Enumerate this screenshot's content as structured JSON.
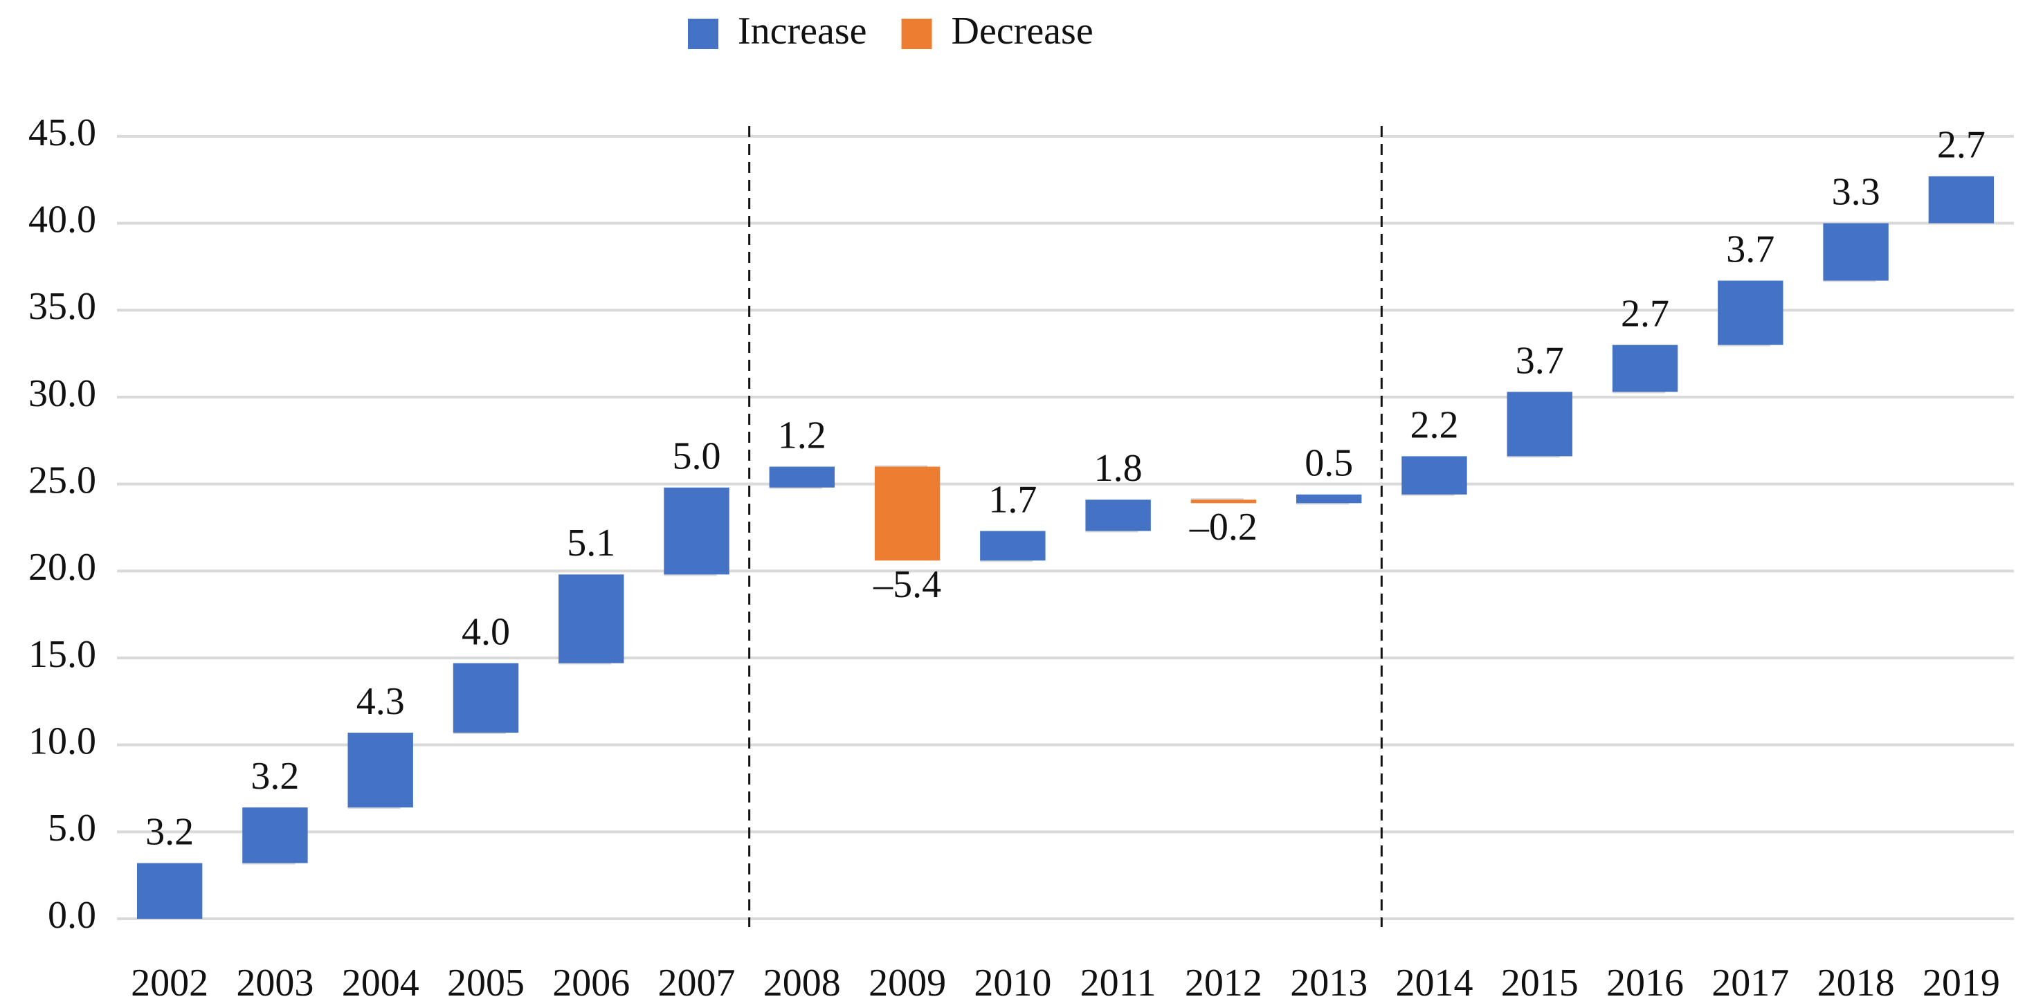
{
  "chart_data": {
    "type": "waterfall",
    "legend": [
      {
        "name": "Increase",
        "color": "#4472c4"
      },
      {
        "name": "Decrease",
        "color": "#ed7d31"
      }
    ],
    "categories": [
      "2002",
      "2003",
      "2004",
      "2005",
      "2006",
      "2007",
      "2008",
      "2009",
      "2010",
      "2011",
      "2012",
      "2013",
      "2014",
      "2015",
      "2016",
      "2017",
      "2018",
      "2019"
    ],
    "values": [
      3.2,
      3.2,
      4.3,
      4.0,
      5.1,
      5.0,
      1.2,
      -5.4,
      1.7,
      1.8,
      -0.2,
      0.5,
      2.2,
      3.7,
      2.7,
      3.7,
      3.3,
      2.7
    ],
    "value_labels": [
      "3.2",
      "3.2",
      "4.3",
      "4.0",
      "5.1",
      "5.0",
      "1.2",
      "–5.4",
      "1.7",
      "1.8",
      "–0.2",
      "0.5",
      "2.2",
      "3.7",
      "2.7",
      "3.7",
      "3.3",
      "2.7"
    ],
    "ylim": [
      0,
      45
    ],
    "yticks": [
      {
        "value": 0,
        "label": "0.0"
      },
      {
        "value": 5,
        "label": "5.0"
      },
      {
        "value": 10,
        "label": "10.0"
      },
      {
        "value": 15,
        "label": "15.0"
      },
      {
        "value": 20,
        "label": "20.0"
      },
      {
        "value": 25,
        "label": "25.0"
      },
      {
        "value": 30,
        "label": "30.0"
      },
      {
        "value": 35,
        "label": "35.0"
      },
      {
        "value": 40,
        "label": "40.0"
      },
      {
        "value": 45,
        "label": "45.0"
      }
    ],
    "grid": true
  }
}
